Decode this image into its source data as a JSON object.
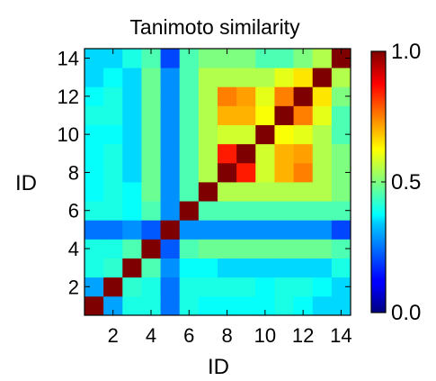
{
  "chart_data": {
    "type": "heatmap",
    "title": "Tanimoto similarity",
    "xlabel": "ID",
    "ylabel": "ID",
    "x_ticks": [
      "2",
      "4",
      "6",
      "8",
      "10",
      "12",
      "14"
    ],
    "y_ticks": [
      "2",
      "4",
      "6",
      "8",
      "10",
      "12",
      "14"
    ],
    "x_range": [
      1,
      14
    ],
    "y_range": [
      1,
      14
    ],
    "colorbar": {
      "min": 0.0,
      "max": 1.0,
      "ticks": [
        "0.0",
        "0.5",
        "1.0"
      ],
      "colormap": "jet"
    },
    "ids": [
      1,
      2,
      3,
      4,
      5,
      6,
      7,
      8,
      9,
      10,
      11,
      12,
      13,
      14
    ],
    "matrix": [
      [
        1.0,
        0.3,
        0.4,
        0.4,
        0.25,
        0.4,
        0.38,
        0.38,
        0.38,
        0.38,
        0.4,
        0.38,
        0.35,
        0.35
      ],
      [
        0.3,
        1.0,
        0.42,
        0.4,
        0.25,
        0.4,
        0.4,
        0.4,
        0.4,
        0.38,
        0.4,
        0.4,
        0.38,
        0.35
      ],
      [
        0.4,
        0.42,
        1.0,
        0.45,
        0.28,
        0.38,
        0.38,
        0.35,
        0.35,
        0.35,
        0.35,
        0.35,
        0.35,
        0.4
      ],
      [
        0.4,
        0.4,
        0.45,
        1.0,
        0.22,
        0.45,
        0.48,
        0.48,
        0.48,
        0.48,
        0.48,
        0.48,
        0.48,
        0.45
      ],
      [
        0.25,
        0.25,
        0.28,
        0.22,
        1.0,
        0.28,
        0.28,
        0.28,
        0.28,
        0.28,
        0.28,
        0.28,
        0.28,
        0.2
      ],
      [
        0.4,
        0.4,
        0.38,
        0.45,
        0.28,
        1.0,
        0.45,
        0.45,
        0.45,
        0.45,
        0.45,
        0.45,
        0.45,
        0.45
      ],
      [
        0.38,
        0.4,
        0.38,
        0.48,
        0.28,
        0.45,
        1.0,
        0.55,
        0.55,
        0.55,
        0.55,
        0.55,
        0.55,
        0.5
      ],
      [
        0.38,
        0.4,
        0.35,
        0.48,
        0.28,
        0.45,
        0.55,
        1.0,
        0.85,
        0.58,
        0.7,
        0.75,
        0.55,
        0.5
      ],
      [
        0.38,
        0.4,
        0.35,
        0.48,
        0.28,
        0.45,
        0.55,
        0.85,
        1.0,
        0.58,
        0.7,
        0.72,
        0.55,
        0.5
      ],
      [
        0.38,
        0.38,
        0.35,
        0.48,
        0.28,
        0.45,
        0.55,
        0.58,
        0.58,
        1.0,
        0.62,
        0.6,
        0.55,
        0.45
      ],
      [
        0.4,
        0.4,
        0.35,
        0.48,
        0.28,
        0.45,
        0.55,
        0.7,
        0.7,
        0.62,
        1.0,
        0.75,
        0.6,
        0.45
      ],
      [
        0.38,
        0.4,
        0.35,
        0.48,
        0.28,
        0.45,
        0.55,
        0.75,
        0.72,
        0.6,
        0.75,
        1.0,
        0.65,
        0.5
      ],
      [
        0.35,
        0.38,
        0.35,
        0.48,
        0.28,
        0.45,
        0.55,
        0.55,
        0.55,
        0.55,
        0.6,
        0.65,
        1.0,
        0.55
      ],
      [
        0.35,
        0.35,
        0.4,
        0.45,
        0.2,
        0.45,
        0.5,
        0.5,
        0.5,
        0.45,
        0.45,
        0.5,
        0.55,
        1.0
      ]
    ]
  }
}
